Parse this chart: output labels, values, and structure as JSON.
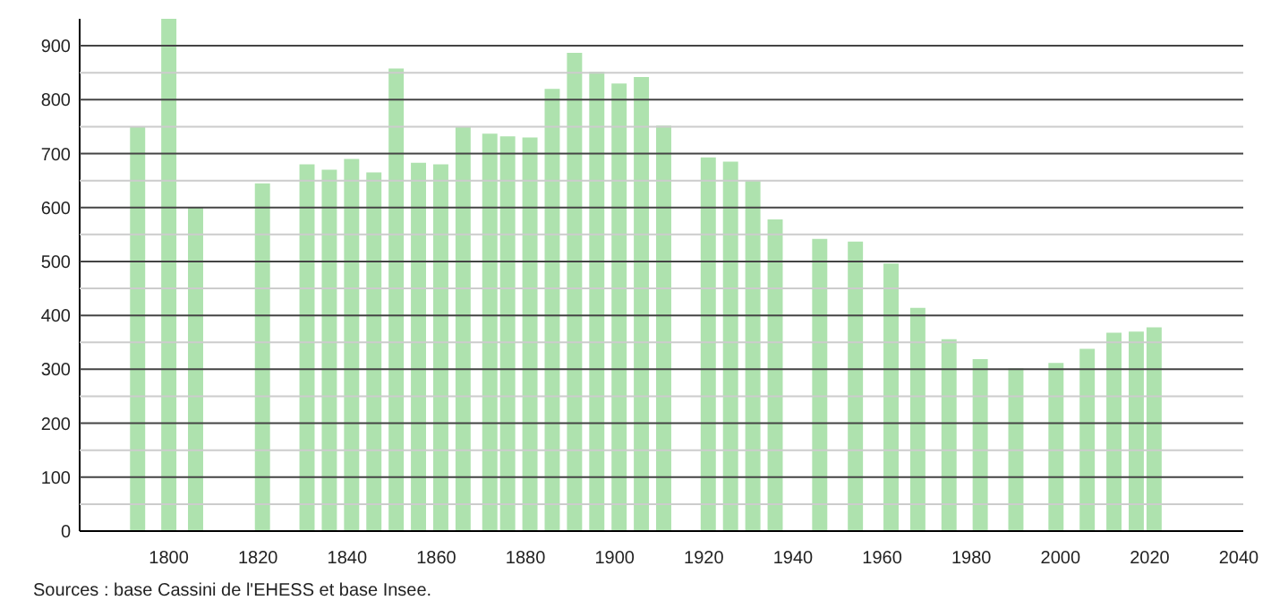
{
  "chart_data": {
    "type": "bar",
    "x": [
      1793,
      1800,
      1806,
      1821,
      1831,
      1836,
      1841,
      1846,
      1851,
      1856,
      1861,
      1866,
      1872,
      1876,
      1881,
      1886,
      1891,
      1896,
      1901,
      1906,
      1911,
      1921,
      1926,
      1931,
      1936,
      1946,
      1954,
      1962,
      1968,
      1975,
      1982,
      1990,
      1999,
      2006,
      2012,
      2017,
      2021
    ],
    "values": [
      750,
      950,
      600,
      645,
      680,
      670,
      690,
      665,
      858,
      683,
      680,
      750,
      737,
      732,
      730,
      820,
      887,
      852,
      830,
      842,
      752,
      693,
      685,
      650,
      578,
      542,
      537,
      496,
      414,
      356,
      319,
      302,
      312,
      338,
      368,
      370,
      378
    ],
    "color": "#aee2ae",
    "xlim": [
      1780,
      2041
    ],
    "xticks": [
      1800,
      1820,
      1840,
      1860,
      1880,
      1900,
      1920,
      1940,
      1960,
      1980,
      2000,
      2020,
      2040
    ],
    "ylim": [
      0,
      950
    ],
    "yticks": [
      0,
      {
        "value": 50,
        "label": null
      },
      100,
      {
        "value": 150,
        "label": null
      },
      200,
      {
        "value": 250,
        "label": null
      },
      300,
      {
        "value": 350,
        "label": null
      },
      400,
      {
        "value": 450,
        "label": null
      },
      500,
      {
        "value": 550,
        "label": null
      },
      600,
      {
        "value": 650,
        "label": null
      },
      700,
      {
        "value": 750,
        "label": null
      },
      800,
      {
        "value": 850,
        "label": null
      },
      900
    ],
    "grid": "y",
    "annotations": [
      "Sources : base Cassini de l'EHESS et base Insee."
    ]
  }
}
